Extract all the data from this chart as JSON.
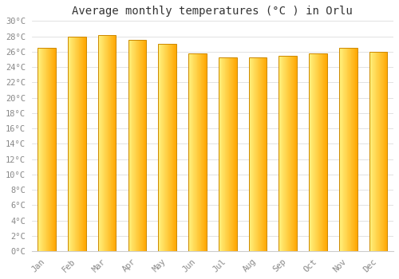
{
  "title": "Average monthly temperatures (°C ) in Orlu",
  "months": [
    "Jan",
    "Feb",
    "Mar",
    "Apr",
    "May",
    "Jun",
    "Jul",
    "Aug",
    "Sep",
    "Oct",
    "Nov",
    "Dec"
  ],
  "values": [
    26.5,
    28.0,
    28.2,
    27.5,
    27.0,
    25.8,
    25.2,
    25.2,
    25.5,
    25.8,
    26.5,
    26.0
  ],
  "ylim": [
    0,
    30
  ],
  "yticks": [
    0,
    2,
    4,
    6,
    8,
    10,
    12,
    14,
    16,
    18,
    20,
    22,
    24,
    26,
    28,
    30
  ],
  "bar_color_light": "#FFE066",
  "bar_color_mid": "#FFC200",
  "bar_color_dark": "#FFA500",
  "bar_edge_color": "#CC8800",
  "background_color": "#FFFFFF",
  "grid_color": "#DDDDDD",
  "title_fontsize": 10,
  "tick_fontsize": 7.5,
  "font_family": "monospace",
  "bar_width": 0.6,
  "gradient_steps": 50
}
